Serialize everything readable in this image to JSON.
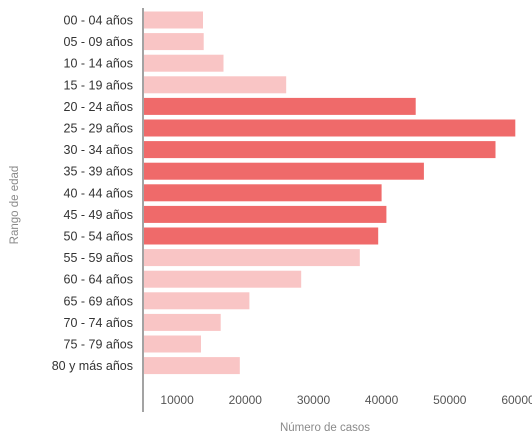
{
  "chart_data": {
    "type": "bar",
    "orientation": "horizontal",
    "categories": [
      "00 - 04 años",
      "05 - 09 años",
      "10 - 14 años",
      "15 - 19 años",
      "20 - 24 años",
      "25 - 29 años",
      "30 - 34 años",
      "35 - 39 años",
      "40 - 44 años",
      "45 - 49 años",
      "50 - 54 años",
      "55 - 59 años",
      "60 - 64 años",
      "65 - 69 años",
      "70 - 74 años",
      "75 - 79 años",
      "80 y más años"
    ],
    "values": [
      13800,
      13900,
      16800,
      26000,
      45000,
      59600,
      56700,
      46200,
      40000,
      40700,
      39500,
      36800,
      28200,
      20600,
      16400,
      13500,
      19200
    ],
    "highlighted": [
      false,
      false,
      false,
      false,
      true,
      true,
      true,
      true,
      true,
      true,
      true,
      false,
      false,
      false,
      false,
      false,
      false
    ],
    "xlabel": "Número de casos",
    "ylabel": "Rango de edad",
    "xlim": [
      5000,
      60000
    ],
    "xticks": [
      10000,
      20000,
      30000,
      40000,
      50000,
      60000
    ],
    "xtick_labels": [
      "10000",
      "20000",
      "30000",
      "40000",
      "50000",
      "60000"
    ],
    "grid": false,
    "colors": {
      "highlight": "#ef6a6a",
      "normal": "#f9c5c5",
      "axis": "#666666"
    }
  }
}
